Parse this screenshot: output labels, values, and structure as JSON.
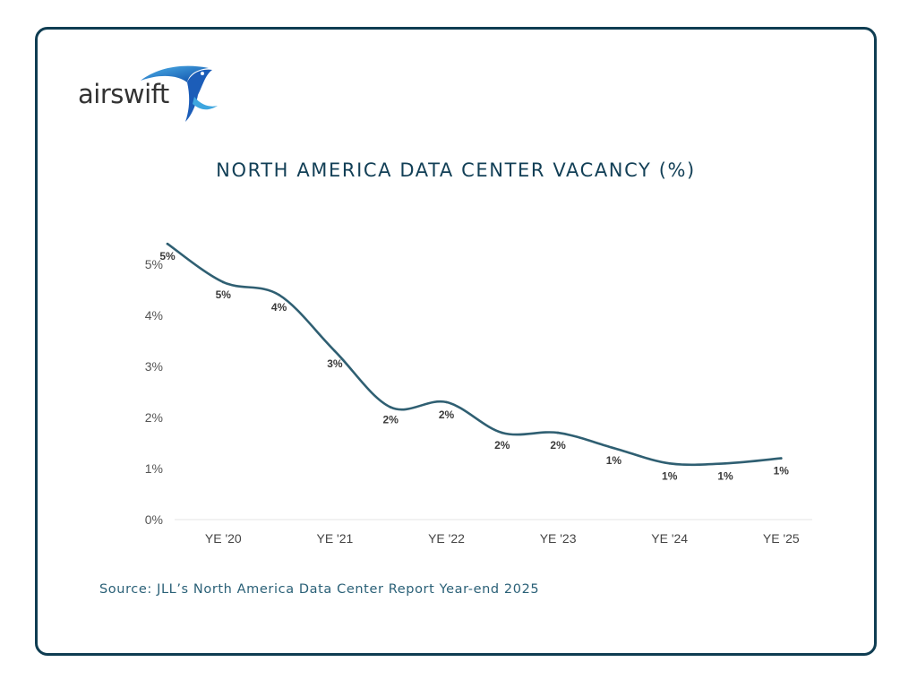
{
  "logo": {
    "text": "airswift"
  },
  "source": "Source: JLL’s North America Data Center Report Year-end 2025",
  "colors": {
    "border": "#0f3d52",
    "line": "#2f5f72",
    "title": "#123f56",
    "source": "#2a6077"
  },
  "chart_data": {
    "type": "line",
    "title": "NORTH AMERICA DATA CENTER VACANCY (%)",
    "xlabel": "",
    "ylabel": "",
    "ylim": [
      0,
      5.5
    ],
    "yticks": [
      "0%",
      "1%",
      "2%",
      "3%",
      "4%",
      "5%"
    ],
    "xticks": [
      {
        "label": "YE '20",
        "at": 1
      },
      {
        "label": "YE '21",
        "at": 3
      },
      {
        "label": "YE '22",
        "at": 5
      },
      {
        "label": "YE '23",
        "at": 7
      },
      {
        "label": "YE '24",
        "at": 9
      },
      {
        "label": "YE '25",
        "at": 11
      }
    ],
    "grid": false,
    "series": [
      {
        "values": [
          5.4,
          4.65,
          4.4,
          3.3,
          2.2,
          2.3,
          1.7,
          1.7,
          1.4,
          1.1,
          1.1,
          1.2
        ],
        "labels": [
          "5%",
          "5%",
          "4%",
          "3%",
          "2%",
          "2%",
          "2%",
          "2%",
          "1%",
          "1%",
          "1%",
          "1%"
        ]
      }
    ]
  }
}
